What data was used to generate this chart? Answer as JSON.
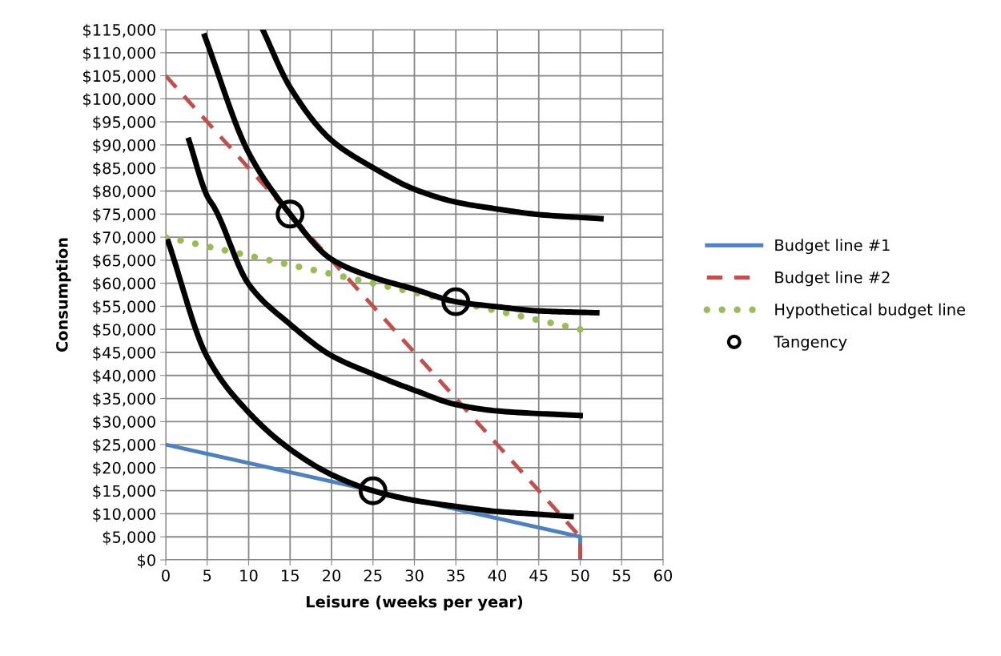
{
  "chart_data": {
    "type": "line",
    "xlabel": "Leisure (weeks per year)",
    "ylabel": "Consumption",
    "xlim": [
      0,
      60
    ],
    "xticks": [
      0,
      5,
      10,
      15,
      20,
      25,
      30,
      35,
      40,
      45,
      50,
      55,
      60
    ],
    "ylim": [
      0,
      115000
    ],
    "yticks": [
      {
        "value": 0,
        "label": "$0"
      },
      {
        "value": 5000,
        "label": "$5,000"
      },
      {
        "value": 10000,
        "label": "$10,000"
      },
      {
        "value": 15000,
        "label": "$15,000"
      },
      {
        "value": 20000,
        "label": "$20,000"
      },
      {
        "value": 25000,
        "label": "$25,000"
      },
      {
        "value": 30000,
        "label": "$30,000"
      },
      {
        "value": 35000,
        "label": "$35,000"
      },
      {
        "value": 40000,
        "label": "$40,000"
      },
      {
        "value": 45000,
        "label": "$45,000"
      },
      {
        "value": 50000,
        "label": "$50,000"
      },
      {
        "value": 55000,
        "label": "$55,000"
      },
      {
        "value": 60000,
        "label": "$60,000"
      },
      {
        "value": 65000,
        "label": "$65,000"
      },
      {
        "value": 70000,
        "label": "$70,000"
      },
      {
        "value": 75000,
        "label": "$75,000"
      },
      {
        "value": 80000,
        "label": "$80,000"
      },
      {
        "value": 85000,
        "label": "$85,000"
      },
      {
        "value": 90000,
        "label": "$90,000"
      },
      {
        "value": 95000,
        "label": "$95,000"
      },
      {
        "value": 100000,
        "label": "$100,000"
      },
      {
        "value": 105000,
        "label": "$105,000"
      },
      {
        "value": 110000,
        "label": "$110,000"
      },
      {
        "value": 115000,
        "label": "$115,000"
      }
    ],
    "grid": true,
    "legend": "right",
    "series": [
      {
        "name": "Budget line #1",
        "color": "#4f81bd",
        "line_style": "solid",
        "marker": "none",
        "x": [
          0,
          50,
          50
        ],
        "values": [
          25000,
          5000,
          0
        ]
      },
      {
        "name": "Budget line #2",
        "color": "#c0504d",
        "line_style": "dashed",
        "marker": "none",
        "x": [
          0,
          50,
          50
        ],
        "values": [
          105000,
          5000,
          0
        ]
      },
      {
        "name": "Hypothetical budget line",
        "color": "#9bbb59",
        "line_style": "dotted",
        "marker": "none",
        "x": [
          0,
          50
        ],
        "values": [
          70000,
          50000
        ]
      },
      {
        "type": "line",
        "color": "#000000",
        "line_style": "solid",
        "marker": "none",
        "x": [
          0.3,
          5,
          10,
          15,
          20,
          25,
          30,
          35,
          40,
          45,
          48.9
        ],
        "values": [
          69000,
          44000,
          32000,
          24000,
          18500,
          15000,
          12900,
          11600,
          10500,
          9900,
          9400
        ]
      },
      {
        "type": "line",
        "color": "#000000",
        "line_style": "solid",
        "marker": "none",
        "x": [
          2.8,
          5,
          5.9,
          10,
          15,
          20,
          25,
          30,
          35,
          40,
          50
        ],
        "values": [
          91000,
          78900,
          76300,
          59800,
          51100,
          44300,
          40300,
          36800,
          33700,
          32300,
          31300
        ]
      },
      {
        "type": "line",
        "color": "#000000",
        "line_style": "solid",
        "marker": "none",
        "x": [
          4.7,
          10,
          15,
          20,
          25,
          30,
          35,
          40,
          45,
          52
        ],
        "values": [
          113600,
          88300,
          75000,
          65200,
          61300,
          58700,
          56000,
          54900,
          54000,
          53600
        ]
      },
      {
        "type": "line",
        "color": "#000000",
        "line_style": "solid",
        "marker": "none",
        "x": [
          11.7,
          15,
          20,
          25,
          30,
          35,
          40,
          45,
          52.5
        ],
        "values": [
          115000,
          102500,
          91000,
          85100,
          80400,
          77600,
          76100,
          74900,
          74000
        ]
      },
      {
        "name": "Tangency",
        "type": "scatter",
        "color": "#000000",
        "marker": "circle",
        "x": [
          15,
          25,
          35
        ],
        "values": [
          75000,
          15000,
          56000
        ]
      }
    ]
  }
}
